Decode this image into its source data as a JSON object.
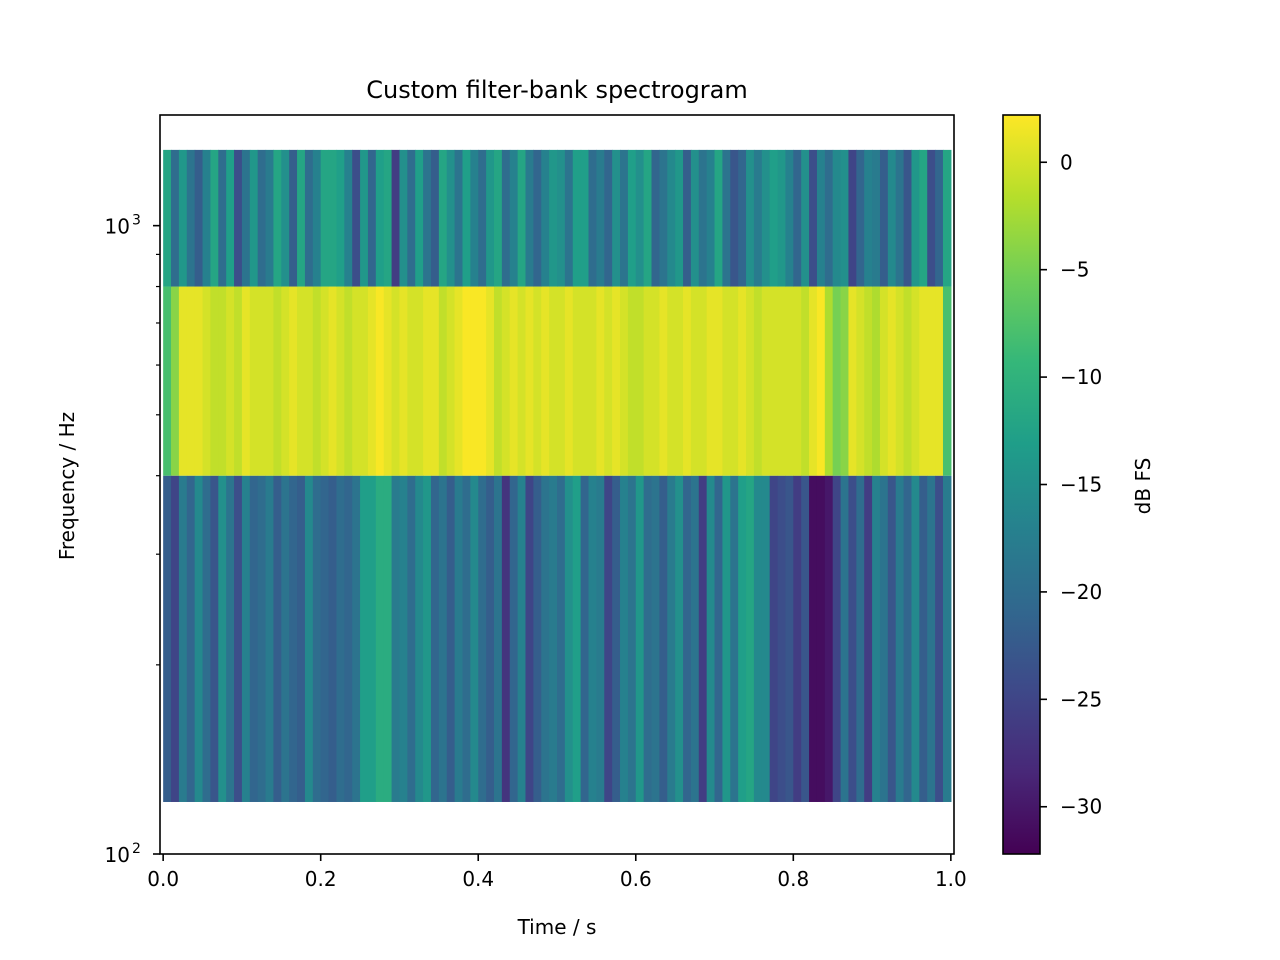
{
  "chart_data": {
    "type": "heatmap",
    "title": "Custom filter-bank spectrogram",
    "xlabel": "Time / s",
    "ylabel": "Frequency / Hz",
    "xlim": [
      -0.004,
      1.004
    ],
    "ylim": [
      100,
      1500
    ],
    "yscale": "log",
    "xticks": [
      0.0,
      0.2,
      0.4,
      0.6,
      0.8,
      1.0
    ],
    "xtick_labels": [
      "0.0",
      "0.2",
      "0.4",
      "0.6",
      "0.8",
      "1.0"
    ],
    "yticks": [
      {
        "value": 100,
        "base": "10",
        "exp": "2"
      },
      {
        "value": 1000,
        "base": "10",
        "exp": "3"
      }
    ],
    "bands": [
      {
        "low": 121,
        "high": 400
      },
      {
        "low": 400,
        "high": 800
      },
      {
        "low": 800,
        "high": 1320
      }
    ],
    "time_bin_edges": [
      0.0,
      0.01,
      0.02,
      0.03,
      0.04,
      0.05,
      0.06,
      0.07,
      0.08,
      0.09,
      0.1,
      0.11,
      0.12,
      0.13,
      0.14,
      0.15,
      0.16,
      0.17,
      0.18,
      0.19,
      0.2,
      0.21,
      0.22,
      0.23,
      0.24,
      0.25,
      0.26,
      0.27,
      0.28,
      0.29,
      0.3,
      0.31,
      0.32,
      0.33,
      0.34,
      0.35,
      0.36,
      0.37,
      0.38,
      0.39,
      0.4,
      0.41,
      0.42,
      0.43,
      0.44,
      0.45,
      0.46,
      0.47,
      0.48,
      0.49,
      0.5,
      0.51,
      0.52,
      0.53,
      0.54,
      0.55,
      0.56,
      0.57,
      0.58,
      0.59,
      0.6,
      0.61,
      0.62,
      0.63,
      0.64,
      0.65,
      0.66,
      0.67,
      0.68,
      0.69,
      0.7,
      0.71,
      0.72,
      0.73,
      0.74,
      0.75,
      0.76,
      0.77,
      0.78,
      0.79,
      0.8,
      0.81,
      0.82,
      0.83,
      0.84,
      0.85,
      0.86,
      0.87,
      0.88,
      0.89,
      0.9,
      0.91,
      0.92,
      0.93,
      0.94,
      0.95,
      0.96,
      0.97,
      0.98,
      0.99,
      1.0
    ],
    "values_db": [
      [
        -22,
        -25,
        -18,
        -21,
        -16,
        -20,
        -23,
        -15,
        -19,
        -24,
        -17,
        -21,
        -20,
        -18,
        -22,
        -19,
        -21,
        -22,
        -16,
        -20,
        -21,
        -22,
        -20,
        -21,
        -19,
        -13,
        -13,
        -11,
        -11,
        -18,
        -17,
        -20,
        -16,
        -14,
        -21,
        -19,
        -22,
        -18,
        -20,
        -16,
        -20,
        -22,
        -19,
        -27,
        -21,
        -17,
        -25,
        -22,
        -19,
        -18,
        -20,
        -15,
        -13,
        -21,
        -17,
        -18,
        -25,
        -22,
        -17,
        -19,
        -14,
        -20,
        -19,
        -22,
        -18,
        -15,
        -21,
        -19,
        -26,
        -16,
        -21,
        -14,
        -19,
        -13,
        -12,
        -16,
        -16,
        -25,
        -24,
        -23,
        -26,
        -23,
        -31,
        -31,
        -30,
        -25,
        -19,
        -24,
        -20,
        -26,
        -17,
        -19,
        -23,
        -18,
        -21,
        -16,
        -22,
        -19,
        -24,
        -18
      ],
      [
        -8,
        -4,
        1,
        1,
        1,
        0,
        -1,
        -1,
        0,
        -1,
        1,
        0,
        0,
        0,
        -1,
        0,
        1,
        0,
        0,
        -1,
        0,
        1,
        0,
        -1,
        0,
        0,
        1,
        2,
        1,
        0,
        1,
        0,
        0,
        1,
        1,
        -1,
        0,
        1,
        2,
        2,
        2,
        1,
        -1,
        0,
        1,
        0,
        1,
        0,
        1,
        0,
        0,
        1,
        0,
        0,
        0,
        1,
        0,
        1,
        0,
        -1,
        -1,
        0,
        0,
        1,
        0,
        0,
        1,
        0,
        0,
        1,
        1,
        0,
        0,
        1,
        0,
        -1,
        0,
        0,
        0,
        0,
        0,
        -1,
        1,
        2,
        -2,
        -5,
        -4,
        1,
        0,
        -1,
        -2,
        0,
        1,
        0,
        -1,
        0,
        1,
        1,
        1,
        -8
      ],
      [
        -12,
        -20,
        -14,
        -19,
        -22,
        -17,
        -12,
        -20,
        -13,
        -24,
        -19,
        -14,
        -20,
        -18,
        -12,
        -15,
        -22,
        -12,
        -20,
        -17,
        -12,
        -12,
        -13,
        -17,
        -24,
        -14,
        -21,
        -13,
        -12,
        -26,
        -15,
        -20,
        -13,
        -19,
        -22,
        -12,
        -15,
        -19,
        -13,
        -17,
        -20,
        -14,
        -12,
        -20,
        -17,
        -12,
        -18,
        -21,
        -17,
        -14,
        -15,
        -19,
        -13,
        -13,
        -20,
        -18,
        -21,
        -15,
        -19,
        -13,
        -15,
        -12,
        -21,
        -19,
        -16,
        -14,
        -22,
        -15,
        -19,
        -17,
        -12,
        -19,
        -23,
        -21,
        -15,
        -18,
        -15,
        -13,
        -14,
        -17,
        -21,
        -15,
        -24,
        -17,
        -20,
        -16,
        -15,
        -25,
        -21,
        -17,
        -18,
        -22,
        -16,
        -19,
        -23,
        -14,
        -12,
        -24,
        -21,
        -12
      ]
    ],
    "colorbar": {
      "label": "dB FS",
      "range": [
        -32.2,
        2.2
      ],
      "ticks": [
        0,
        -5,
        -10,
        -15,
        -20,
        -25,
        -30
      ],
      "tick_labels": [
        "0",
        "−5",
        "−10",
        "−15",
        "−20",
        "−25",
        "−30"
      ],
      "colormap": "viridis"
    },
    "grid": false
  },
  "colors": {
    "viridis": [
      "#440154",
      "#482878",
      "#3e4989",
      "#31688e",
      "#26828e",
      "#1f9e89",
      "#35b779",
      "#6ece58",
      "#b5de2b",
      "#fde725"
    ]
  }
}
